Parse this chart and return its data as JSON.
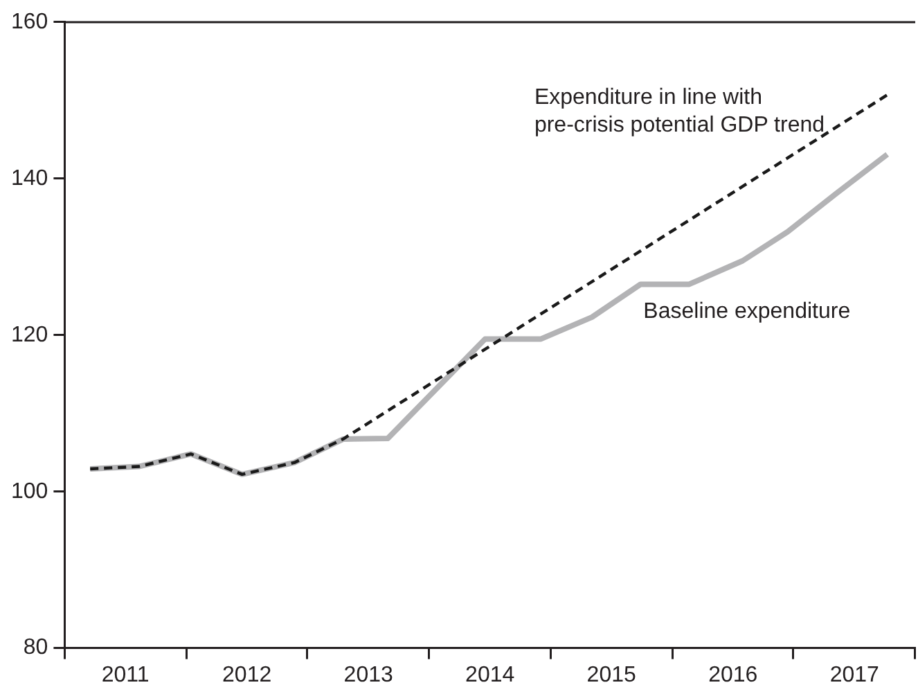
{
  "chart_data": {
    "type": "line",
    "xlim": [
      2011,
      2018
    ],
    "ylim": [
      80,
      160
    ],
    "yticks": [
      80,
      100,
      120,
      140,
      160
    ],
    "xticks": [
      {
        "value": 2011,
        "label": null
      },
      {
        "value": 2011.5,
        "label": "2011"
      },
      {
        "value": 2012,
        "label": null
      },
      {
        "value": 2012.5,
        "label": "2012"
      },
      {
        "value": 2013,
        "label": null
      },
      {
        "value": 2013.5,
        "label": "2013"
      },
      {
        "value": 2014,
        "label": null
      },
      {
        "value": 2014.5,
        "label": "2014"
      },
      {
        "value": 2015,
        "label": null
      },
      {
        "value": 2015.5,
        "label": "2015"
      },
      {
        "value": 2016,
        "label": null
      },
      {
        "value": 2016.5,
        "label": "2016"
      },
      {
        "value": 2017,
        "label": null
      },
      {
        "value": 2017.5,
        "label": "2017"
      },
      {
        "value": 2018,
        "label": null
      }
    ],
    "grid": false,
    "legend": false,
    "marker": "none",
    "series": [
      {
        "name": "Baseline expenditure",
        "color": "#b3b3b5",
        "line_style": "solid",
        "x": [
          2011.21,
          2011.61,
          2012.04,
          2012.46,
          2012.89,
          2013.29,
          2013.66,
          2014.46,
          2014.92,
          2015.34,
          2015.74,
          2016.14,
          2016.58,
          2016.95,
          2017.35,
          2017.77
        ],
        "values": [
          102.9,
          103.2,
          104.8,
          102.2,
          103.7,
          106.7,
          106.8,
          119.5,
          119.5,
          122.3,
          126.5,
          126.5,
          129.5,
          133.2,
          138.1,
          143.1
        ]
      },
      {
        "name": "Expenditure in line with\npre-crisis potential GDP trend",
        "color": "#1a1a1a",
        "line_style": "dashed",
        "x": [
          2011.21,
          2011.61,
          2012.04,
          2012.46,
          2012.89,
          2013.29,
          2017.77
        ],
        "values": [
          102.9,
          103.2,
          104.8,
          102.2,
          103.7,
          106.7,
          150.7
        ]
      }
    ]
  }
}
